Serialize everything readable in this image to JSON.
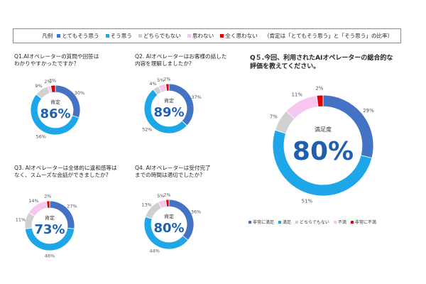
{
  "legend": {
    "label": "凡例",
    "items": [
      {
        "text": "とてもそう思う",
        "color": "#4472c4"
      },
      {
        "text": "そう思う",
        "color": "#1ea7e8"
      },
      {
        "text": "どちらでもない",
        "color": "#d0d0d0"
      },
      {
        "text": "思わない",
        "color": "#f6c6ee"
      },
      {
        "text": "全く思わない",
        "color": "#e00000"
      }
    ],
    "note": "（肯定は「とてもそう思う」と「そう思う」の比率）"
  },
  "questions": [
    {
      "q": "Q1.AIオペレーターの質問や回答は\nわかりやすかったですか？"
    },
    {
      "q": "Q2. AIオペレーターはお客様の話した\n内容を理解しましたか?"
    },
    {
      "q": "Q3. AIオペレーターは全体的に違和感等は\n なく、スムーズな会話ができましたか?"
    },
    {
      "q": "Q4. AIオペレーターは受付完了\nまでの時間は適切でしたか?"
    }
  ],
  "q5": {
    "title": "Q５.今回、利用されたAIオペレーターの総合的な\n評価を教えてください。",
    "legend": [
      {
        "text": "非常に満足",
        "color": "#4472c4"
      },
      {
        "text": "満足",
        "color": "#1ea7e8"
      },
      {
        "text": "どちらでもない",
        "color": "#d0d0d0"
      },
      {
        "text": "不満",
        "color": "#f6c6ee"
      },
      {
        "text": "非常に不満",
        "color": "#e00000"
      }
    ]
  },
  "chart_data": [
    {
      "type": "pie",
      "title": "Q1",
      "center_label": "肯定",
      "center_value": "86%",
      "categories": [
        "とてもそう思う",
        "そう思う",
        "どちらでもない",
        "思わない",
        "全く思わない"
      ],
      "values": [
        30,
        56,
        9,
        2,
        3
      ],
      "labels": [
        "30%",
        "56%",
        "9%",
        "2%",
        "3%"
      ]
    },
    {
      "type": "pie",
      "title": "Q2",
      "center_label": "肯定",
      "center_value": "89%",
      "categories": [
        "とてもそう思う",
        "そう思う",
        "どちらでもない",
        "思わない",
        "全く思わない"
      ],
      "values": [
        37,
        52,
        4,
        5,
        2
      ],
      "labels": [
        "37%",
        "52%",
        "4%",
        "5%",
        "2%"
      ]
    },
    {
      "type": "pie",
      "title": "Q3",
      "center_label": "肯定",
      "center_value": "73%",
      "categories": [
        "とてもそう思う",
        "そう思う",
        "どちらでもない",
        "思わない",
        "全く思わない"
      ],
      "values": [
        27,
        46,
        11,
        14,
        2
      ],
      "labels": [
        "27%",
        "46%",
        "11%",
        "14%",
        "2%"
      ]
    },
    {
      "type": "pie",
      "title": "Q4",
      "center_label": "肯定",
      "center_value": "80%",
      "categories": [
        "とてもそう思う",
        "そう思う",
        "どちらでもない",
        "思わない",
        "全く思わない"
      ],
      "values": [
        36,
        44,
        13,
        5,
        2
      ],
      "labels": [
        "36%",
        "44%",
        "13%",
        "5%",
        "2%"
      ]
    },
    {
      "type": "pie",
      "title": "Q5",
      "center_label": "満足度",
      "center_value": "80%",
      "categories": [
        "非常に満足",
        "満足",
        "どちらでもない",
        "不満",
        "非常に不満"
      ],
      "values": [
        29,
        51,
        7,
        11,
        2
      ],
      "labels": [
        "29%",
        "51%",
        "7%",
        "11%",
        "2%"
      ]
    }
  ]
}
